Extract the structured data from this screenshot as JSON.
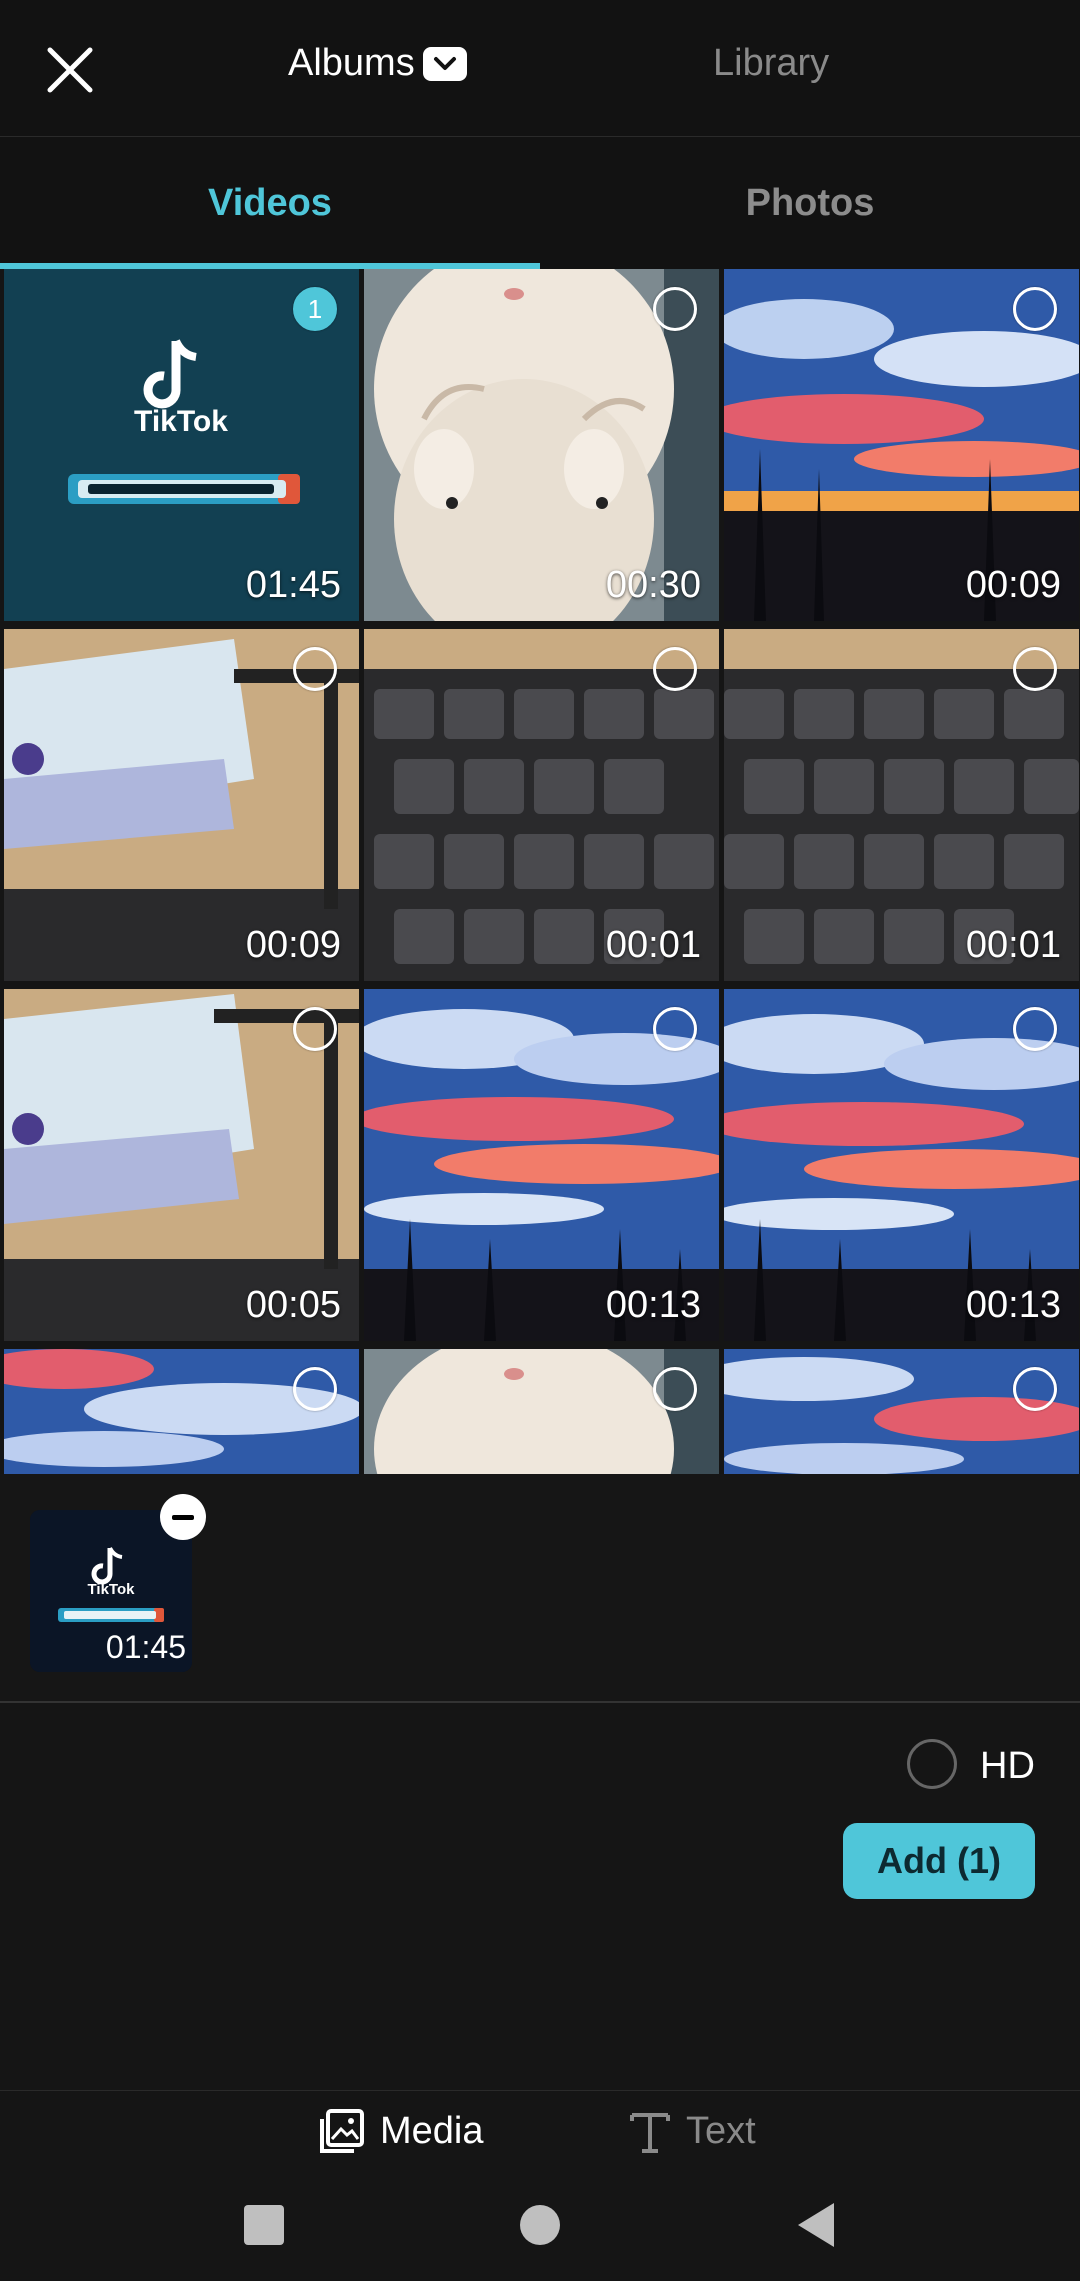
{
  "header": {
    "albums_label": "Albums",
    "library_label": "Library"
  },
  "tabs": [
    {
      "label": "Videos",
      "active": true
    },
    {
      "label": "Photos",
      "active": false
    }
  ],
  "grid": {
    "items": [
      {
        "duration": "01:45",
        "selected": true,
        "selection_index": "1",
        "thumb": "tiktok-logo"
      },
      {
        "duration": "00:30",
        "selected": false,
        "thumb": "kitten"
      },
      {
        "duration": "00:09",
        "selected": false,
        "thumb": "sunset-sky-street"
      },
      {
        "duration": "00:09",
        "selected": false,
        "thumb": "tissue-desk"
      },
      {
        "duration": "00:01",
        "selected": false,
        "thumb": "keyboard"
      },
      {
        "duration": "00:01",
        "selected": false,
        "thumb": "keyboard"
      },
      {
        "duration": "00:05",
        "selected": false,
        "thumb": "tissue-desk"
      },
      {
        "duration": "00:13",
        "selected": false,
        "thumb": "sunset-sky-palms"
      },
      {
        "duration": "00:13",
        "selected": false,
        "thumb": "sunset-sky-palms"
      },
      {
        "duration": "",
        "selected": false,
        "thumb": "sunset-sky"
      },
      {
        "duration": "",
        "selected": false,
        "thumb": "kitten"
      },
      {
        "duration": "",
        "selected": false,
        "thumb": "sunset-sky"
      }
    ]
  },
  "selected_tray": {
    "items": [
      {
        "duration": "01:45",
        "thumb": "tiktok-logo"
      }
    ]
  },
  "options": {
    "hd_label": "HD",
    "add_button_label": "Add (1)"
  },
  "bottom_nav": {
    "media_label": "Media",
    "text_label": "Text"
  },
  "colors": {
    "accent": "#4fc6d9",
    "background": "#151515",
    "inactive_text": "#8a8a8a"
  }
}
